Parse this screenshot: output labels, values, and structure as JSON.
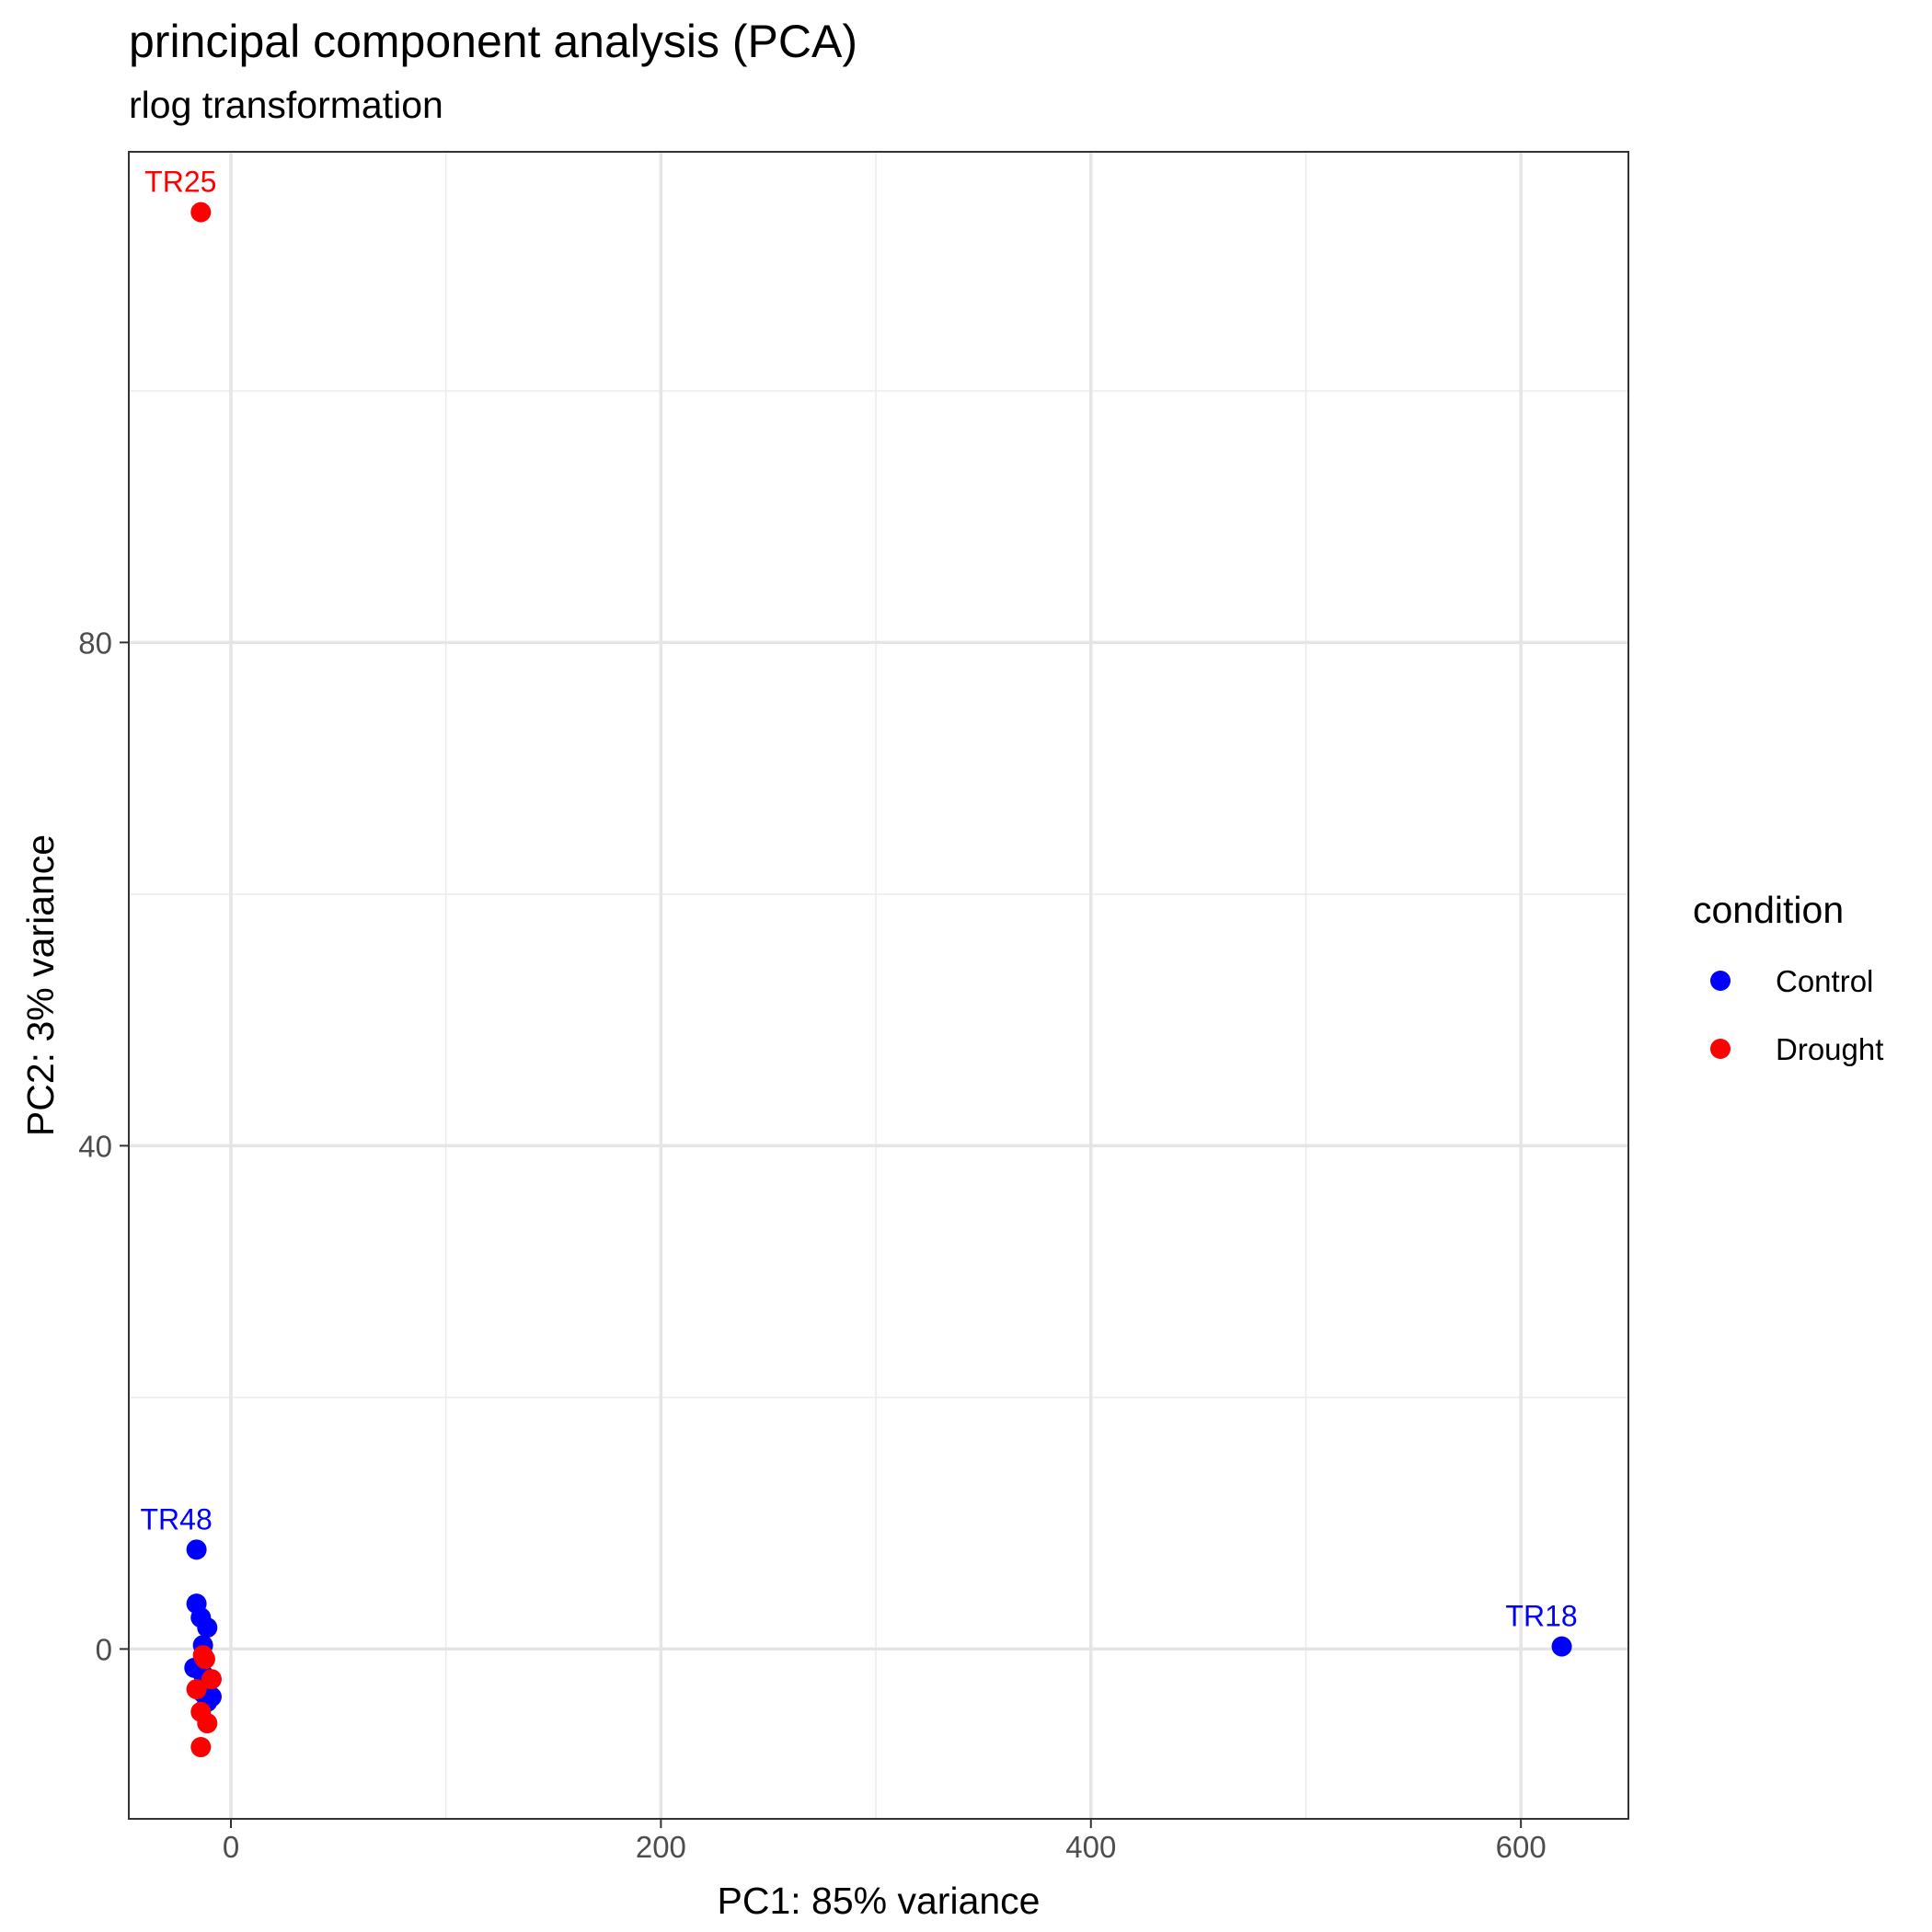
{
  "chart_data": {
    "type": "scatter",
    "title": "principal component analysis (PCA)",
    "subtitle": "rlog transformation",
    "xlabel": "PC1: 85% variance",
    "ylabel": "PC2: 3% variance",
    "xlim": [
      -47.5,
      650
    ],
    "ylim": [
      -13.5,
      119
    ],
    "x_ticks": [
      0,
      200,
      400,
      600
    ],
    "y_ticks": [
      0,
      40,
      80
    ],
    "x_minor": [
      100,
      300,
      500
    ],
    "y_minor": [
      20,
      60,
      100
    ],
    "grid": true,
    "legend": {
      "title": "condition",
      "position": "right",
      "entries": [
        {
          "name": "Control",
          "color": "#0000ff"
        },
        {
          "name": "Drought",
          "color": "#ff0000"
        }
      ]
    },
    "series": [
      {
        "name": "Control",
        "color": "#0000ff",
        "points": [
          {
            "x": -16,
            "y": 7.9,
            "label": "TR48"
          },
          {
            "x": 619,
            "y": 0.2,
            "label": "TR18"
          },
          {
            "x": -16,
            "y": 3.6
          },
          {
            "x": -14,
            "y": 2.5
          },
          {
            "x": -11,
            "y": 1.7
          },
          {
            "x": -13,
            "y": 0.3
          },
          {
            "x": -17,
            "y": -1.5
          },
          {
            "x": -13,
            "y": -2.0
          },
          {
            "x": -13,
            "y": -3.5
          },
          {
            "x": -9,
            "y": -3.8
          },
          {
            "x": -11,
            "y": -4.2
          }
        ]
      },
      {
        "name": "Drought",
        "color": "#ff0000",
        "points": [
          {
            "x": -14,
            "y": 114.2,
            "label": "TR25"
          },
          {
            "x": -13,
            "y": -0.5
          },
          {
            "x": -12,
            "y": -0.8
          },
          {
            "x": -9,
            "y": -2.4
          },
          {
            "x": -16,
            "y": -3.2
          },
          {
            "x": -14,
            "y": -5.0
          },
          {
            "x": -11,
            "y": -5.9
          },
          {
            "x": -14,
            "y": -7.8
          }
        ]
      }
    ]
  }
}
